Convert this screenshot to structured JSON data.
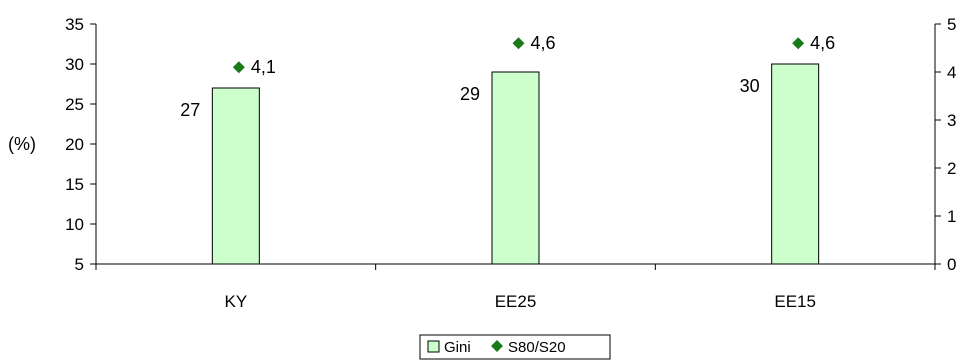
{
  "chart_data": {
    "type": "bar",
    "categories": [
      "KY",
      "EE25",
      "EE15"
    ],
    "series": [
      {
        "name": "Gini",
        "type": "bar",
        "axis": "left",
        "values": [
          27,
          29,
          30
        ],
        "labels": [
          "27",
          "29",
          "30"
        ],
        "color": "#ccffcc",
        "stroke": "#000000"
      },
      {
        "name": "S80/S20",
        "type": "scatter",
        "axis": "right",
        "values": [
          4.1,
          4.6,
          4.6
        ],
        "labels": [
          "4,1",
          "4,6",
          "4,6"
        ],
        "color": "#1a7a1a",
        "marker": "diamond"
      }
    ],
    "ylabel": "(%)",
    "ylim": [
      5,
      35
    ],
    "yticks": [
      "5",
      "10",
      "15",
      "20",
      "25",
      "30",
      "35"
    ],
    "y2lim": [
      0,
      5
    ],
    "y2ticks": [
      "0",
      "1",
      "2",
      "3",
      "4",
      "5"
    ],
    "grid": false,
    "legend_position": "bottom"
  }
}
